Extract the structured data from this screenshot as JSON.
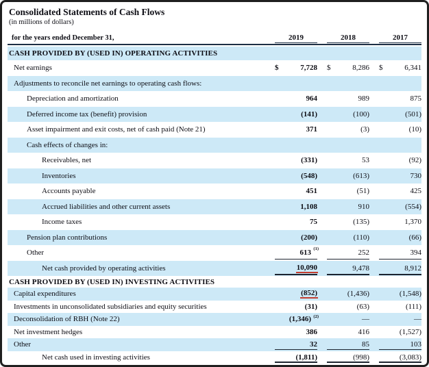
{
  "title": "Consolidated Statements of Cash Flows",
  "subtitle": "(in millions of dollars)",
  "period_label": "for the years ended December 31,",
  "years": [
    "2019",
    "2018",
    "2017"
  ],
  "colors": {
    "row_highlight": "#cde9f7",
    "annotation_red": "#c23b2e",
    "rule": "#1c2f45"
  },
  "sections": [
    {
      "id": "operating",
      "header": "CASH PROVIDED BY (USED IN) OPERATING ACTIVITIES",
      "header_highlight": true,
      "rows": [
        {
          "label": "Net earnings",
          "indent": 0,
          "hl": false,
          "dollar": true,
          "values": [
            "7,728",
            "8,286",
            "6,341"
          ]
        },
        {
          "label": "Adjustments to reconcile net earnings to operating cash flows:",
          "indent": 0,
          "hl": true,
          "values": null
        },
        {
          "label": "Depreciation and amortization",
          "indent": 1,
          "hl": false,
          "values": [
            "964",
            "989",
            "875"
          ]
        },
        {
          "label": "Deferred income tax (benefit) provision",
          "indent": 1,
          "hl": true,
          "values": [
            "(141)",
            "(100)",
            "(501)"
          ]
        },
        {
          "label": "Asset impairment and exit costs, net of cash paid (Note 21)",
          "indent": 1,
          "hl": false,
          "values": [
            "371",
            "(3)",
            "(10)"
          ]
        },
        {
          "label": "Cash effects of changes in:",
          "indent": 1,
          "hl": true,
          "values": null
        },
        {
          "label": "Receivables, net",
          "indent": 2,
          "hl": false,
          "values": [
            "(331)",
            "53",
            "(92)"
          ]
        },
        {
          "label": "Inventories",
          "indent": 2,
          "hl": true,
          "values": [
            "(548)",
            "(613)",
            "730"
          ]
        },
        {
          "label": "Accounts payable",
          "indent": 2,
          "hl": false,
          "values": [
            "451",
            "(51)",
            "425"
          ]
        },
        {
          "label": "Accrued liabilities and other current assets",
          "indent": 2,
          "hl": true,
          "values": [
            "1,108",
            "910",
            "(554)"
          ]
        },
        {
          "label": "Income taxes",
          "indent": 2,
          "hl": false,
          "values": [
            "75",
            "(135)",
            "1,370"
          ]
        },
        {
          "label": "Pension plan contributions",
          "indent": 1,
          "hl": true,
          "values": [
            "(200)",
            "(110)",
            "(66)"
          ]
        },
        {
          "label": "Other",
          "indent": 1,
          "hl": false,
          "values": [
            "613",
            "252",
            "394"
          ],
          "sup": [
            "(1)",
            null,
            null
          ],
          "sumline": true
        },
        {
          "label": "Net cash provided by operating activities",
          "indent": 2,
          "hl": true,
          "values": [
            "10,090",
            "9,478",
            "8,912"
          ],
          "sumline": true,
          "red": [
            true,
            false,
            false
          ]
        }
      ]
    },
    {
      "id": "investing",
      "header": "CASH PROVIDED BY (USED IN) INVESTING ACTIVITIES",
      "header_highlight": false,
      "rows": [
        {
          "label": "Capital expenditures",
          "indent": 0,
          "hl": true,
          "values": [
            "(852)",
            "(1,436)",
            "(1,548)"
          ],
          "red": [
            true,
            false,
            false
          ]
        },
        {
          "label": "Investments in unconsolidated subsidiaries and equity securities",
          "indent": 0,
          "hl": false,
          "values": [
            "(31)",
            "(63)",
            "(111)"
          ]
        },
        {
          "label": "Deconsolidation of RBH (Note 22)",
          "indent": 0,
          "hl": true,
          "values": [
            "(1,346)",
            "—",
            "—"
          ],
          "sup": [
            "(2)",
            null,
            null
          ]
        },
        {
          "label": "Net investment hedges",
          "indent": 0,
          "hl": false,
          "values": [
            "386",
            "416",
            "(1,527)"
          ]
        },
        {
          "label": "Other",
          "indent": 0,
          "hl": true,
          "values": [
            "32",
            "85",
            "103"
          ],
          "sumline": true
        },
        {
          "label": "Net cash used in investing activities",
          "indent": 2,
          "hl": false,
          "values": [
            "(1,811)",
            "(998)",
            "(3,083)"
          ],
          "sumline": true
        }
      ]
    }
  ]
}
